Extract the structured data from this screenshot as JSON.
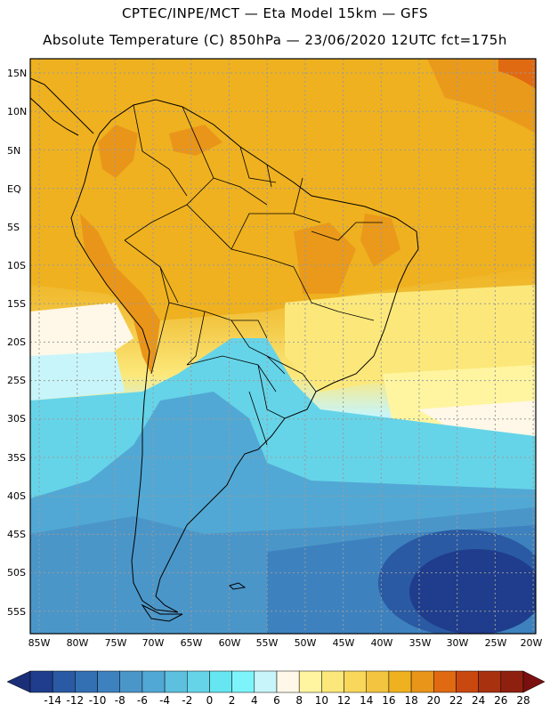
{
  "header": {
    "line1": "CPTEC/INPE/MCT —  Eta Model 15km — GFS",
    "line2": "Absolute Temperature (C) 850hPa — 23/06/2020 12UTC fct=175h"
  },
  "axes": {
    "latitudes": [
      "15N",
      "10N",
      "5N",
      "EQ",
      "5S",
      "10S",
      "15S",
      "20S",
      "25S",
      "30S",
      "35S",
      "40S",
      "45S",
      "50S",
      "55S"
    ],
    "longitudes": [
      "85W",
      "80W",
      "75W",
      "70W",
      "65W",
      "60W",
      "55W",
      "50W",
      "45W",
      "40W",
      "35W",
      "30W",
      "25W",
      "20W"
    ]
  },
  "colorbar": {
    "ticks": [
      "-14",
      "-12",
      "-10",
      "-8",
      "-6",
      "-4",
      "-2",
      "0",
      "2",
      "4",
      "6",
      "8",
      "10",
      "12",
      "14",
      "16",
      "18",
      "20",
      "22",
      "24",
      "26",
      "28"
    ],
    "colors": [
      "#1f3d8c",
      "#2a5aa3",
      "#336fb3",
      "#3d82bf",
      "#4b96c9",
      "#52a8d4",
      "#5cc0de",
      "#66d4e8",
      "#66e6f0",
      "#7df4fa",
      "#c8f5fa",
      "#fff8e8",
      "#fff5a0",
      "#fce87a",
      "#f8d75a",
      "#f2c43f",
      "#efb11f",
      "#e9951a",
      "#e06a12",
      "#c84810",
      "#a83110",
      "#8e2010"
    ],
    "low_color": "#1a2f78",
    "high_color": "#7a1010"
  }
}
